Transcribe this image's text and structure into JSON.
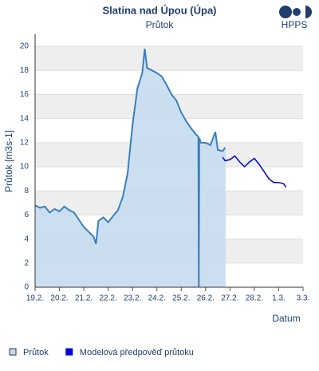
{
  "chart_data": {
    "type": "area-line",
    "title": "Slatina nad Úpou (Úpa)",
    "subtitle": "Průtok",
    "logo": "HPPS",
    "y_label": "Průtok [m3s-1]",
    "x_label": "Datum",
    "xlim": [
      0,
      11
    ],
    "ylim": [
      0,
      21
    ],
    "yticks": [
      0,
      2,
      4,
      6,
      8,
      10,
      12,
      14,
      16,
      18,
      20
    ],
    "xticks": [
      {
        "value": 0,
        "label": "19.2."
      },
      {
        "value": 1,
        "label": "20.2."
      },
      {
        "value": 2,
        "label": "21.2."
      },
      {
        "value": 3,
        "label": "22.2."
      },
      {
        "value": 4,
        "label": "23.2."
      },
      {
        "value": 5,
        "label": "24.2."
      },
      {
        "value": 6,
        "label": "25.2."
      },
      {
        "value": 7,
        "label": "26.2."
      },
      {
        "value": 8,
        "label": "27.2."
      },
      {
        "value": 9,
        "label": "28.2."
      },
      {
        "value": 10,
        "label": "1.3."
      },
      {
        "value": 11,
        "label": "3.3."
      }
    ],
    "grid": true,
    "series": [
      {
        "name": "Průtok",
        "color": "#3a7fbf",
        "fill": "#c5dcf0",
        "x": [
          0,
          0.2,
          0.4,
          0.6,
          0.8,
          1.0,
          1.2,
          1.4,
          1.6,
          1.8,
          2.0,
          2.2,
          2.4,
          2.5,
          2.6,
          2.8,
          3.0,
          3.2,
          3.4,
          3.6,
          3.8,
          4.0,
          4.2,
          4.4,
          4.5,
          4.6,
          4.8,
          5.0,
          5.2,
          5.4,
          5.6,
          5.8,
          6.0,
          6.2,
          6.4,
          6.6,
          6.7,
          6.72,
          6.74,
          6.8,
          7.0,
          7.2,
          7.4,
          7.5,
          7.7,
          7.8
        ],
        "values": [
          6.8,
          6.6,
          6.7,
          6.2,
          6.5,
          6.3,
          6.7,
          6.4,
          6.2,
          5.6,
          5.0,
          4.6,
          4.2,
          3.6,
          5.5,
          5.8,
          5.4,
          5.9,
          6.4,
          7.5,
          9.5,
          13.5,
          16.5,
          17.8,
          19.8,
          18.2,
          18.0,
          17.8,
          17.5,
          16.8,
          16.0,
          15.5,
          14.5,
          13.8,
          13.2,
          12.7,
          12.5,
          0,
          12.4,
          12.0,
          12.0,
          11.8,
          12.9,
          11.4,
          11.3,
          11.6
        ]
      },
      {
        "name": "Modelová předpověď průtoku",
        "color": "#0000dd",
        "x": [
          7.7,
          7.8,
          8.0,
          8.2,
          8.4,
          8.6,
          8.8,
          9.0,
          9.2,
          9.4,
          9.6,
          9.8,
          10.0,
          10.2,
          10.3
        ],
        "values": [
          10.8,
          10.5,
          10.6,
          10.9,
          10.4,
          10.0,
          10.4,
          10.7,
          10.2,
          9.6,
          9.0,
          8.7,
          8.7,
          8.6,
          8.3
        ]
      }
    ]
  }
}
